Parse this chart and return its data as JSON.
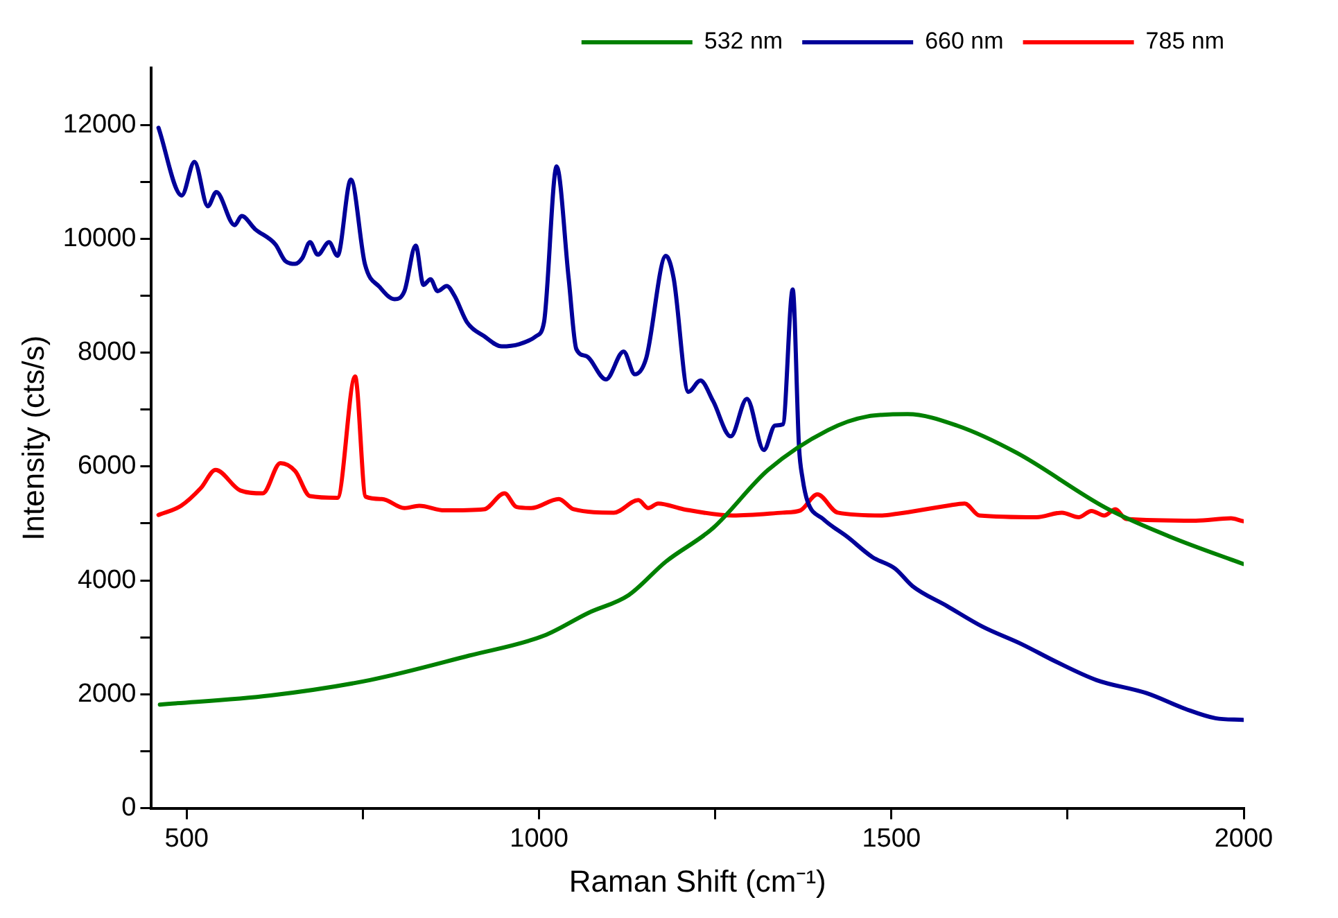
{
  "chart_data": {
    "type": "line",
    "xlabel": "Raman Shift (cm⁻¹)",
    "ylabel": "Intensity (cts/s)",
    "xlim": [
      450,
      2000
    ],
    "xticks": [
      500,
      {
        "value": 750,
        "label": null
      },
      1000,
      {
        "value": 1250,
        "label": null
      },
      1500,
      {
        "value": 1750,
        "label": null
      },
      2000
    ],
    "ylim": [
      0,
      13000
    ],
    "yticks": [
      0,
      {
        "value": 1000,
        "label": null
      },
      2000,
      {
        "value": 3000,
        "label": null
      },
      4000,
      {
        "value": 5000,
        "label": null
      },
      6000,
      {
        "value": 7000,
        "label": null
      },
      8000,
      {
        "value": 9000,
        "label": null
      },
      10000,
      {
        "value": 11000,
        "label": null
      },
      12000
    ],
    "grid": false,
    "legend": "top right",
    "marker": "none",
    "line_style": "solid",
    "series": [
      {
        "name": "532 nm",
        "color": "#008000",
        "x": [
          462,
          619,
          760,
          901,
          1007,
          1070,
          1127,
          1180,
          1247,
          1325,
          1410,
          1466,
          1523,
          1593,
          1678,
          1805,
          1897,
          1999
        ],
        "values": [
          1820,
          1980,
          2250,
          2680,
          3030,
          3430,
          3740,
          4330,
          4920,
          5940,
          6640,
          6880,
          6920,
          6720,
          6240,
          5270,
          4760,
          4290
        ]
      },
      {
        "name": "660 nm",
        "color": "#000099",
        "x": [
          460,
          493,
          511,
          530,
          542,
          568,
          578,
          597,
          626,
          640,
          654,
          664,
          675,
          686,
          702,
          714,
          733,
          753,
          774,
          795,
          809,
          825,
          836,
          846,
          856,
          869,
          880,
          898,
          922,
          947,
          972,
          996,
          1007,
          1025,
          1042,
          1053,
          1067,
          1095,
          1120,
          1136,
          1152,
          1180,
          1191,
          1212,
          1229,
          1247,
          1272,
          1295,
          1319,
          1335,
          1346,
          1360,
          1369,
          1374,
          1381,
          1403,
          1438,
          1473,
          1505,
          1530,
          1579,
          1629,
          1685,
          1734,
          1791,
          1862,
          1918,
          1960,
          1999
        ],
        "values": [
          11950,
          10760,
          11350,
          10570,
          10820,
          10240,
          10400,
          10170,
          9900,
          9610,
          9560,
          9660,
          9940,
          9720,
          9940,
          9700,
          11040,
          9550,
          9150,
          8940,
          9080,
          9880,
          9190,
          9290,
          9080,
          9170,
          9000,
          8530,
          8290,
          8110,
          8150,
          8290,
          8530,
          11270,
          9310,
          8060,
          7940,
          7530,
          8020,
          7620,
          7900,
          9700,
          9310,
          7310,
          7510,
          7150,
          6530,
          7190,
          6290,
          6720,
          6740,
          9110,
          6330,
          5790,
          5390,
          5080,
          4760,
          4410,
          4210,
          3900,
          3550,
          3190,
          2880,
          2570,
          2250,
          2020,
          1740,
          1580,
          1550
        ]
      },
      {
        "name": "785 nm",
        "color": "#ff0000",
        "x": [
          460,
          492,
          520,
          541,
          576,
          608,
          633,
          654,
          675,
          714,
          739,
          754,
          777,
          809,
          830,
          866,
          922,
          951,
          968,
          989,
          1028,
          1049,
          1106,
          1141,
          1155,
          1169,
          1205,
          1275,
          1346,
          1371,
          1395,
          1424,
          1487,
          1508,
          1579,
          1604,
          1625,
          1706,
          1742,
          1766,
          1784,
          1802,
          1818,
          1833,
          1932,
          1982,
          1999
        ],
        "values": [
          5150,
          5310,
          5620,
          5940,
          5580,
          5530,
          6060,
          5920,
          5480,
          5450,
          7580,
          5470,
          5430,
          5270,
          5310,
          5230,
          5250,
          5530,
          5290,
          5270,
          5430,
          5250,
          5190,
          5410,
          5270,
          5350,
          5250,
          5140,
          5190,
          5230,
          5510,
          5190,
          5140,
          5170,
          5310,
          5350,
          5140,
          5110,
          5190,
          5110,
          5220,
          5140,
          5250,
          5080,
          5050,
          5090,
          5040
        ]
      }
    ]
  }
}
